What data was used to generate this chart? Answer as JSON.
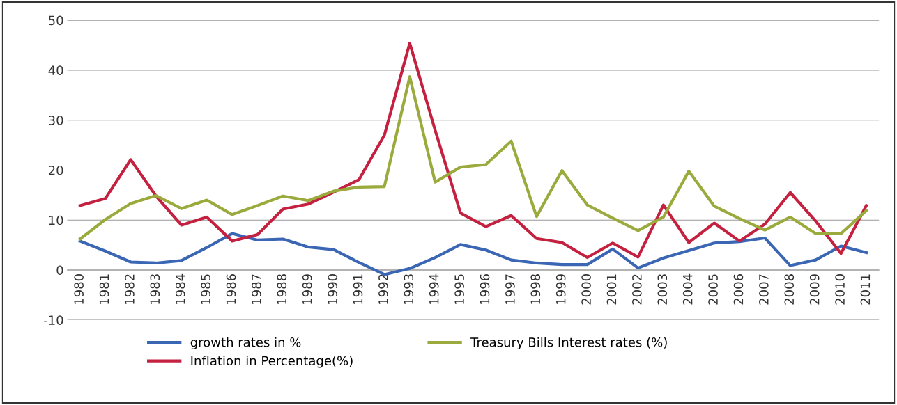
{
  "chart_data": {
    "type": "line",
    "categories": [
      "1980",
      "1981",
      "1982",
      "1983",
      "1984",
      "1985",
      "1986",
      "1987",
      "1988",
      "1989",
      "1990",
      "1991",
      "1992",
      "1993",
      "1994",
      "1995",
      "1996",
      "1997",
      "1998",
      "1999",
      "2000",
      "2001",
      "2002",
      "2003",
      "2004",
      "2005",
      "2006",
      "2007",
      "2008",
      "2009",
      "2010",
      "2011"
    ],
    "series": [
      {
        "name": "growth rates in %",
        "color": "#3a66b4",
        "values": [
          5.8,
          3.8,
          1.6,
          1.4,
          1.9,
          4.5,
          7.3,
          6.0,
          6.2,
          4.6,
          4.1,
          1.5,
          -0.9,
          0.3,
          2.5,
          5.1,
          4.0,
          2.0,
          1.4,
          1.1,
          1.1,
          4.2,
          0.4,
          2.4,
          3.9,
          5.4,
          5.7,
          6.4,
          0.9,
          2.0,
          4.8,
          3.5
        ]
      },
      {
        "name": "Inflation in Percentage(%)",
        "color": "#c4203f",
        "values": [
          12.9,
          14.3,
          22.1,
          14.8,
          9.0,
          10.6,
          5.8,
          7.1,
          12.2,
          13.2,
          15.6,
          18.1,
          27.0,
          45.4,
          28.0,
          11.4,
          8.7,
          10.9,
          6.3,
          5.5,
          2.5,
          5.4,
          2.6,
          13.0,
          5.5,
          9.4,
          5.8,
          9.2,
          15.5,
          9.8,
          3.3,
          12.9
        ]
      },
      {
        "name": "Treasury Bills Interest rates (%)",
        "color": "#9aaa3c",
        "values": [
          6.2,
          10.1,
          13.3,
          14.9,
          12.3,
          14.0,
          11.1,
          12.9,
          14.8,
          13.9,
          15.8,
          16.6,
          16.7,
          38.7,
          17.6,
          20.6,
          21.1,
          25.8,
          10.7,
          19.9,
          13.0,
          10.4,
          7.9,
          10.6,
          19.8,
          12.8,
          10.3,
          8.0,
          10.6,
          7.3,
          7.3,
          11.9
        ]
      }
    ],
    "ylim": [
      -10,
      50
    ],
    "yticks": [
      -10,
      0,
      10,
      20,
      30,
      40,
      50
    ],
    "grid": "y",
    "legend": "bottom",
    "marker": "none",
    "line_style": "solid"
  }
}
